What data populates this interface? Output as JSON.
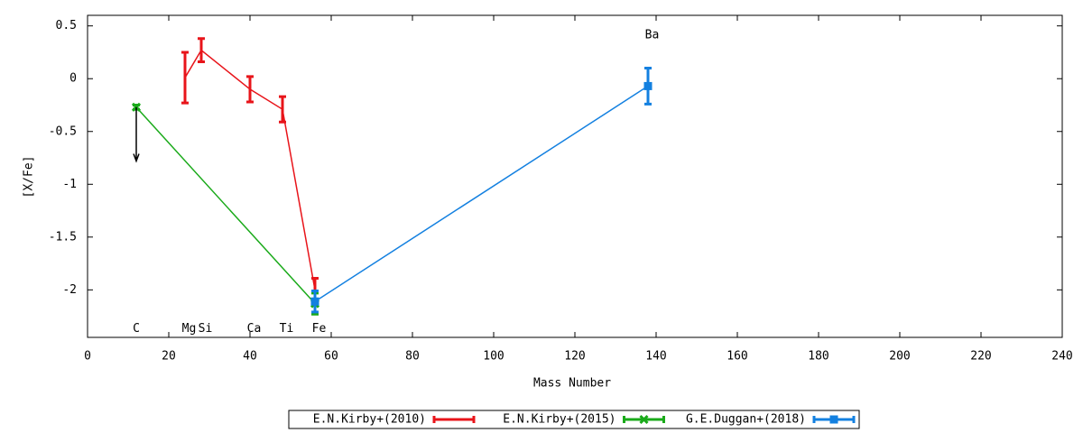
{
  "chart_data": {
    "type": "line",
    "xlabel": "Mass Number",
    "ylabel": "[X/Fe]",
    "xlim": [
      0,
      240
    ],
    "xticks": [
      0,
      20,
      40,
      60,
      80,
      100,
      120,
      140,
      160,
      180,
      200,
      220,
      240
    ],
    "ylim": [
      -2.45,
      0.6
    ],
    "yticks": [
      0.5,
      0,
      -0.5,
      -1,
      -1.5,
      -2
    ],
    "grid": false,
    "legend": "bottom",
    "series": [
      {
        "name": "E.N.Kirby+(2010)",
        "color": "#e8141a",
        "marker": "none",
        "x": [
          24,
          28,
          40,
          48,
          56
        ],
        "values": [
          0.01,
          0.27,
          -0.1,
          -0.29,
          -2.0
        ],
        "errors": [
          0.24,
          0.11,
          0.12,
          0.12,
          0.11
        ]
      },
      {
        "name": "E.N.Kirby+(2015)",
        "color": "#1aaa1a",
        "marker": "x",
        "x": [
          12,
          56
        ],
        "values": [
          -0.27,
          -2.13
        ],
        "errors": [
          0.02,
          0.1
        ]
      },
      {
        "name": "G.E.Duggan+(2018)",
        "color": "#1380e0",
        "marker": "square",
        "x": [
          56,
          138
        ],
        "values": [
          -2.11,
          -0.07
        ],
        "errors": [
          0.1,
          0.17
        ]
      }
    ],
    "upper_limit": {
      "x": 12,
      "from": -0.27,
      "to": -0.78,
      "color": "#000000"
    },
    "annotations": [
      {
        "text": "C",
        "x": 12,
        "y": -2.37
      },
      {
        "text": "Mg",
        "x": 25,
        "y": -2.37
      },
      {
        "text": "Si",
        "x": 29,
        "y": -2.37
      },
      {
        "text": "Ca",
        "x": 41,
        "y": -2.37
      },
      {
        "text": "Ti",
        "x": 49,
        "y": -2.37
      },
      {
        "text": "Fe",
        "x": 57,
        "y": -2.37
      },
      {
        "text": "Ba",
        "x": 139,
        "y": 0.41
      }
    ]
  }
}
